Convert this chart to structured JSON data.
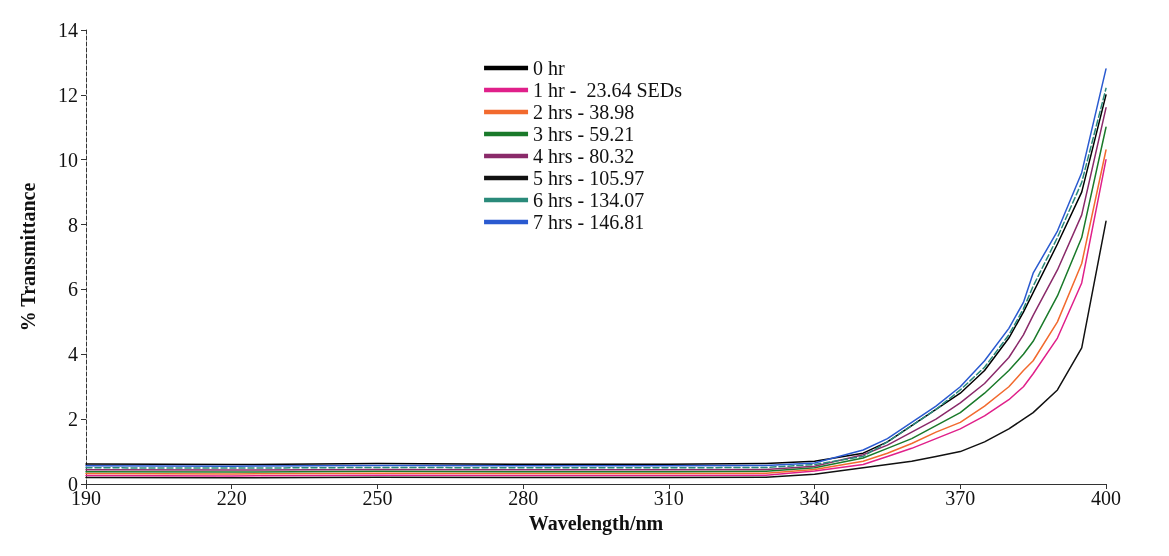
{
  "chart_data": {
    "type": "line",
    "xlabel": "Wavelength/nm",
    "ylabel": "% Transmittance",
    "x": [
      190,
      220,
      250,
      280,
      310,
      330,
      340,
      350,
      355,
      360,
      365,
      370,
      375,
      380,
      383,
      385,
      390,
      395,
      400
    ],
    "series": [
      {
        "name": "0 hr",
        "color": "#000000",
        "values": [
          0.62,
          0.6,
          0.63,
          0.61,
          0.61,
          0.63,
          0.7,
          0.95,
          1.3,
          1.8,
          2.3,
          2.8,
          3.5,
          4.5,
          5.3,
          5.9,
          7.4,
          9.0,
          12.0
        ]
      },
      {
        "name": "1 hr -  23.64 SEDs",
        "color": "#e0208a",
        "values": [
          0.26,
          0.25,
          0.27,
          0.26,
          0.26,
          0.27,
          0.4,
          0.6,
          0.85,
          1.1,
          1.4,
          1.7,
          2.1,
          2.6,
          3.0,
          3.4,
          4.5,
          6.2,
          10.0
        ]
      },
      {
        "name": "2 hrs - 38.98",
        "color": "#f26a2e",
        "values": [
          0.32,
          0.31,
          0.33,
          0.32,
          0.32,
          0.33,
          0.45,
          0.7,
          0.95,
          1.25,
          1.6,
          1.9,
          2.4,
          3.0,
          3.5,
          3.8,
          5.0,
          6.8,
          10.3
        ]
      },
      {
        "name": "3 hrs - 59.21",
        "color": "#1a7a2a",
        "values": [
          0.38,
          0.37,
          0.39,
          0.38,
          0.38,
          0.39,
          0.5,
          0.8,
          1.1,
          1.4,
          1.8,
          2.2,
          2.8,
          3.5,
          4.0,
          4.4,
          5.8,
          7.6,
          11.0
        ]
      },
      {
        "name": "4 hrs - 80.32",
        "color": "#8a2a6a",
        "values": [
          0.44,
          0.43,
          0.45,
          0.44,
          0.44,
          0.45,
          0.55,
          0.9,
          1.2,
          1.6,
          2.0,
          2.5,
          3.1,
          3.9,
          4.6,
          5.2,
          6.6,
          8.3,
          11.6
        ]
      },
      {
        "name": "5 hrs - 105.97",
        "color": "#111111",
        "values": [
          0.2,
          0.19,
          0.21,
          0.2,
          0.2,
          0.21,
          0.3,
          0.5,
          0.6,
          0.7,
          0.85,
          1.0,
          1.3,
          1.7,
          2.0,
          2.2,
          2.9,
          4.2,
          8.1
        ]
      },
      {
        "name": "6 hrs - 134.07",
        "color": "#2a8a7a",
        "line_style": "dashed",
        "values": [
          0.5,
          0.49,
          0.51,
          0.5,
          0.5,
          0.51,
          0.6,
          0.85,
          1.3,
          1.8,
          2.3,
          2.9,
          3.6,
          4.6,
          5.4,
          6.1,
          7.6,
          9.3,
          12.2
        ]
      },
      {
        "name": "7 hrs - 146.81",
        "color": "#2a5ad0",
        "values": [
          0.56,
          0.55,
          0.57,
          0.56,
          0.56,
          0.57,
          0.65,
          1.05,
          1.4,
          1.9,
          2.4,
          3.0,
          3.8,
          4.8,
          5.6,
          6.5,
          7.8,
          9.6,
          12.8
        ]
      }
    ],
    "xlim": [
      190,
      400
    ],
    "xticks": [
      190,
      220,
      250,
      280,
      310,
      340,
      370,
      400
    ],
    "ylim": [
      0,
      14
    ],
    "yticks": [
      0,
      2,
      4,
      6,
      8,
      10,
      12,
      14
    ],
    "grid": false,
    "legend": "top",
    "marker": "none",
    "line_style": "solid"
  }
}
